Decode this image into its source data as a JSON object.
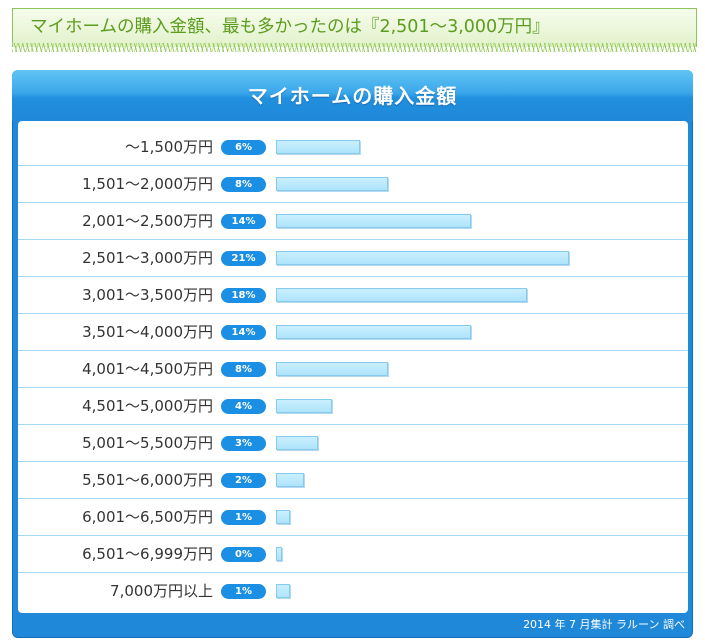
{
  "headline": "マイホームの購入金額、最も多かったのは『2,501〜3,000万円』",
  "source_note": "2014 年 7 月集計 ラルーン 調べ",
  "colors": {
    "headline_text": "#5c9c1e",
    "panel_blue": "#1f88d9",
    "badge_blue": "#1b8fe3",
    "bar_fill": "#aee3fb"
  },
  "chart_data": {
    "type": "bar",
    "orientation": "horizontal",
    "title": "マイホームの購入金額",
    "categories": [
      "～1,500万円",
      "1,501～2,000万円",
      "2,001～2,500万円",
      "2,501～3,000万円",
      "3,001～3,500万円",
      "3,501～4,000万円",
      "4,001～4,500万円",
      "4,501～5,000万円",
      "5,001～5,500万円",
      "5,501～6,000万円",
      "6,001～6,500万円",
      "6,501～6,999万円",
      "7,000万円以上"
    ],
    "values": [
      6,
      8,
      14,
      21,
      18,
      14,
      8,
      4,
      3,
      2,
      1,
      0,
      1
    ],
    "value_labels": [
      "6%",
      "8%",
      "14%",
      "21%",
      "18%",
      "14%",
      "8%",
      "4%",
      "3%",
      "2%",
      "1%",
      "0%",
      "1%"
    ],
    "grid": false,
    "legend": "none"
  }
}
